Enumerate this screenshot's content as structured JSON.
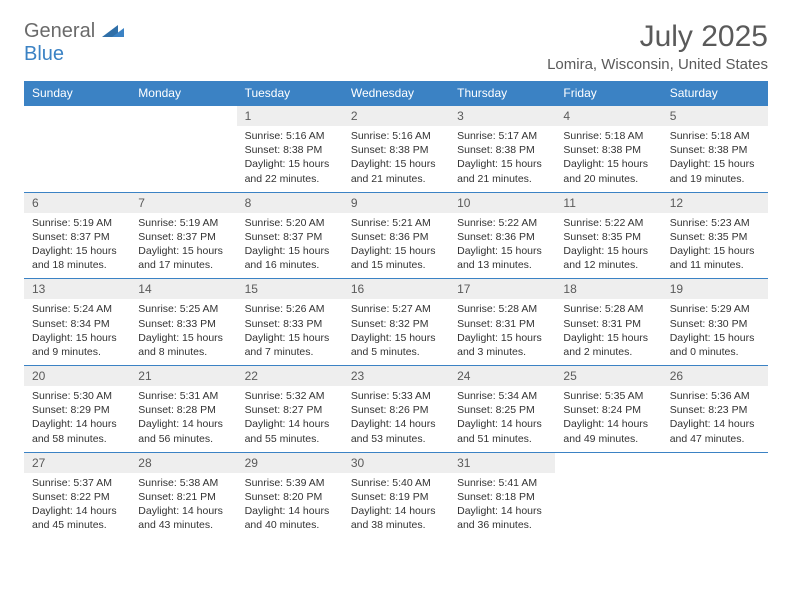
{
  "logo": {
    "general": "General",
    "blue": "Blue"
  },
  "title": "July 2025",
  "subtitle": "Lomira, Wisconsin, United States",
  "colors": {
    "header_bg": "#3b82c4",
    "header_fg": "#ffffff",
    "daynum_bg": "#eeeeee",
    "text": "#333333",
    "muted": "#5a5a5a",
    "row_border": "#3b82c4"
  },
  "day_headers": [
    "Sunday",
    "Monday",
    "Tuesday",
    "Wednesday",
    "Thursday",
    "Friday",
    "Saturday"
  ],
  "weeks": [
    [
      {
        "empty": true
      },
      {
        "empty": true
      },
      {
        "d": "1",
        "sr": "Sunrise: 5:16 AM",
        "ss": "Sunset: 8:38 PM",
        "dl1": "Daylight: 15 hours",
        "dl2": "and 22 minutes."
      },
      {
        "d": "2",
        "sr": "Sunrise: 5:16 AM",
        "ss": "Sunset: 8:38 PM",
        "dl1": "Daylight: 15 hours",
        "dl2": "and 21 minutes."
      },
      {
        "d": "3",
        "sr": "Sunrise: 5:17 AM",
        "ss": "Sunset: 8:38 PM",
        "dl1": "Daylight: 15 hours",
        "dl2": "and 21 minutes."
      },
      {
        "d": "4",
        "sr": "Sunrise: 5:18 AM",
        "ss": "Sunset: 8:38 PM",
        "dl1": "Daylight: 15 hours",
        "dl2": "and 20 minutes."
      },
      {
        "d": "5",
        "sr": "Sunrise: 5:18 AM",
        "ss": "Sunset: 8:38 PM",
        "dl1": "Daylight: 15 hours",
        "dl2": "and 19 minutes."
      }
    ],
    [
      {
        "d": "6",
        "sr": "Sunrise: 5:19 AM",
        "ss": "Sunset: 8:37 PM",
        "dl1": "Daylight: 15 hours",
        "dl2": "and 18 minutes."
      },
      {
        "d": "7",
        "sr": "Sunrise: 5:19 AM",
        "ss": "Sunset: 8:37 PM",
        "dl1": "Daylight: 15 hours",
        "dl2": "and 17 minutes."
      },
      {
        "d": "8",
        "sr": "Sunrise: 5:20 AM",
        "ss": "Sunset: 8:37 PM",
        "dl1": "Daylight: 15 hours",
        "dl2": "and 16 minutes."
      },
      {
        "d": "9",
        "sr": "Sunrise: 5:21 AM",
        "ss": "Sunset: 8:36 PM",
        "dl1": "Daylight: 15 hours",
        "dl2": "and 15 minutes."
      },
      {
        "d": "10",
        "sr": "Sunrise: 5:22 AM",
        "ss": "Sunset: 8:36 PM",
        "dl1": "Daylight: 15 hours",
        "dl2": "and 13 minutes."
      },
      {
        "d": "11",
        "sr": "Sunrise: 5:22 AM",
        "ss": "Sunset: 8:35 PM",
        "dl1": "Daylight: 15 hours",
        "dl2": "and 12 minutes."
      },
      {
        "d": "12",
        "sr": "Sunrise: 5:23 AM",
        "ss": "Sunset: 8:35 PM",
        "dl1": "Daylight: 15 hours",
        "dl2": "and 11 minutes."
      }
    ],
    [
      {
        "d": "13",
        "sr": "Sunrise: 5:24 AM",
        "ss": "Sunset: 8:34 PM",
        "dl1": "Daylight: 15 hours",
        "dl2": "and 9 minutes."
      },
      {
        "d": "14",
        "sr": "Sunrise: 5:25 AM",
        "ss": "Sunset: 8:33 PM",
        "dl1": "Daylight: 15 hours",
        "dl2": "and 8 minutes."
      },
      {
        "d": "15",
        "sr": "Sunrise: 5:26 AM",
        "ss": "Sunset: 8:33 PM",
        "dl1": "Daylight: 15 hours",
        "dl2": "and 7 minutes."
      },
      {
        "d": "16",
        "sr": "Sunrise: 5:27 AM",
        "ss": "Sunset: 8:32 PM",
        "dl1": "Daylight: 15 hours",
        "dl2": "and 5 minutes."
      },
      {
        "d": "17",
        "sr": "Sunrise: 5:28 AM",
        "ss": "Sunset: 8:31 PM",
        "dl1": "Daylight: 15 hours",
        "dl2": "and 3 minutes."
      },
      {
        "d": "18",
        "sr": "Sunrise: 5:28 AM",
        "ss": "Sunset: 8:31 PM",
        "dl1": "Daylight: 15 hours",
        "dl2": "and 2 minutes."
      },
      {
        "d": "19",
        "sr": "Sunrise: 5:29 AM",
        "ss": "Sunset: 8:30 PM",
        "dl1": "Daylight: 15 hours",
        "dl2": "and 0 minutes."
      }
    ],
    [
      {
        "d": "20",
        "sr": "Sunrise: 5:30 AM",
        "ss": "Sunset: 8:29 PM",
        "dl1": "Daylight: 14 hours",
        "dl2": "and 58 minutes."
      },
      {
        "d": "21",
        "sr": "Sunrise: 5:31 AM",
        "ss": "Sunset: 8:28 PM",
        "dl1": "Daylight: 14 hours",
        "dl2": "and 56 minutes."
      },
      {
        "d": "22",
        "sr": "Sunrise: 5:32 AM",
        "ss": "Sunset: 8:27 PM",
        "dl1": "Daylight: 14 hours",
        "dl2": "and 55 minutes."
      },
      {
        "d": "23",
        "sr": "Sunrise: 5:33 AM",
        "ss": "Sunset: 8:26 PM",
        "dl1": "Daylight: 14 hours",
        "dl2": "and 53 minutes."
      },
      {
        "d": "24",
        "sr": "Sunrise: 5:34 AM",
        "ss": "Sunset: 8:25 PM",
        "dl1": "Daylight: 14 hours",
        "dl2": "and 51 minutes."
      },
      {
        "d": "25",
        "sr": "Sunrise: 5:35 AM",
        "ss": "Sunset: 8:24 PM",
        "dl1": "Daylight: 14 hours",
        "dl2": "and 49 minutes."
      },
      {
        "d": "26",
        "sr": "Sunrise: 5:36 AM",
        "ss": "Sunset: 8:23 PM",
        "dl1": "Daylight: 14 hours",
        "dl2": "and 47 minutes."
      }
    ],
    [
      {
        "d": "27",
        "sr": "Sunrise: 5:37 AM",
        "ss": "Sunset: 8:22 PM",
        "dl1": "Daylight: 14 hours",
        "dl2": "and 45 minutes."
      },
      {
        "d": "28",
        "sr": "Sunrise: 5:38 AM",
        "ss": "Sunset: 8:21 PM",
        "dl1": "Daylight: 14 hours",
        "dl2": "and 43 minutes."
      },
      {
        "d": "29",
        "sr": "Sunrise: 5:39 AM",
        "ss": "Sunset: 8:20 PM",
        "dl1": "Daylight: 14 hours",
        "dl2": "and 40 minutes."
      },
      {
        "d": "30",
        "sr": "Sunrise: 5:40 AM",
        "ss": "Sunset: 8:19 PM",
        "dl1": "Daylight: 14 hours",
        "dl2": "and 38 minutes."
      },
      {
        "d": "31",
        "sr": "Sunrise: 5:41 AM",
        "ss": "Sunset: 8:18 PM",
        "dl1": "Daylight: 14 hours",
        "dl2": "and 36 minutes."
      },
      {
        "empty": true
      },
      {
        "empty": true
      }
    ]
  ]
}
